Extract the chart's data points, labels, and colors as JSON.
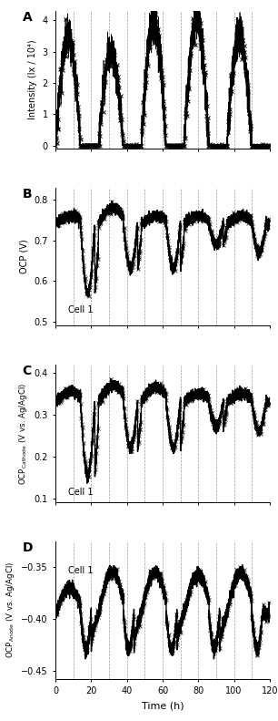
{
  "fig_width": 3.06,
  "fig_height": 7.91,
  "dpi": 100,
  "panel_labels": [
    "A",
    "B",
    "C",
    "D"
  ],
  "x_label": "Time (h)",
  "xlim": [
    0,
    120
  ],
  "xticks": [
    0,
    20,
    40,
    60,
    80,
    100,
    120
  ],
  "dashed_vlines": [
    10,
    20,
    30,
    40,
    50,
    60,
    70,
    80,
    90,
    100,
    110,
    120
  ],
  "panel_A": {
    "ylabel": "Intensity (lx / 10⁴)",
    "ylim": [
      -0.1,
      4.3
    ],
    "yticks": [
      0,
      1,
      2,
      3,
      4
    ],
    "day_on": [
      0,
      24,
      48,
      72,
      96
    ],
    "day_off": [
      14,
      38,
      62,
      86,
      110
    ],
    "peak_vals": [
      3.5,
      3.0,
      4.0,
      4.0,
      3.5
    ]
  },
  "panel_B": {
    "ylabel": "OCP (V)",
    "ylim": [
      0.49,
      0.83
    ],
    "yticks": [
      0.5,
      0.6,
      0.7,
      0.8
    ],
    "label": "Cell 1",
    "day_on": [
      0,
      24,
      48,
      72,
      96
    ],
    "day_off": [
      14,
      38,
      62,
      86,
      110
    ],
    "night_min": [
      0.57,
      0.63,
      0.63,
      0.69,
      0.67
    ],
    "day_peak": [
      0.76,
      0.78,
      0.76,
      0.76,
      0.76
    ],
    "day_base": 0.74
  },
  "panel_C": {
    "ylabel": "OCP$_{\\mathrm{Cathode}}$ (V vs. Ag/AgCl)",
    "ylim": [
      0.09,
      0.42
    ],
    "yticks": [
      0.1,
      0.2,
      0.3,
      0.4
    ],
    "label": "Cell 1",
    "day_on": [
      0,
      24,
      48,
      72,
      96
    ],
    "day_off": [
      14,
      38,
      62,
      86,
      110
    ],
    "night_min": [
      0.155,
      0.22,
      0.22,
      0.27,
      0.26
    ],
    "day_peak": [
      0.355,
      0.37,
      0.365,
      0.35,
      0.35
    ],
    "day_base": 0.33
  },
  "panel_D": {
    "ylabel": "OCP$_{\\mathrm{Anode}}$ (V vs. Ag/AgCl)",
    "ylim": [
      -0.458,
      -0.325
    ],
    "yticks": [
      -0.45,
      -0.4,
      -0.35
    ],
    "label": "Cell 1",
    "day_on": [
      0,
      24,
      48,
      72,
      96
    ],
    "day_off": [
      14,
      38,
      62,
      86,
      110
    ],
    "day_peak": [
      -0.37,
      -0.355,
      -0.355,
      -0.358,
      -0.355
    ],
    "night_base": -0.395,
    "night_min": -0.43
  },
  "line_color": "black",
  "marker_size": 2.5,
  "line_width": 1.0
}
